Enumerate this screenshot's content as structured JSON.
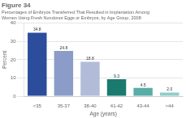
{
  "chart_data": {
    "type": "bar",
    "title": "Figure 34",
    "subtitle": [
      "Percentages of Embryos Transferred That Resulted in Implantation Among",
      "Women Using Fresh Nondonor Eggs or Embryos, by Age Group, 2008"
    ],
    "xlabel": "Age (years)",
    "ylabel": "Percent",
    "categories": [
      "<35",
      "35-37",
      "38-40",
      "41-42",
      "43-44",
      ">44"
    ],
    "values": [
      34.8,
      24.8,
      18.8,
      9.3,
      4.5,
      2.0
    ],
    "value_labels": [
      "34.8",
      "24.8",
      "18.8",
      "9.3",
      "4.5",
      "2.0"
    ],
    "colors": [
      "#2b4d9b",
      "#8b9cc8",
      "#b0bcd8",
      "#1a7a6e",
      "#5aada6",
      "#8ecec8"
    ],
    "ylim": [
      0,
      40
    ],
    "yticks": [
      0,
      10,
      20,
      30,
      40
    ],
    "grid": true,
    "data_labels": true
  }
}
